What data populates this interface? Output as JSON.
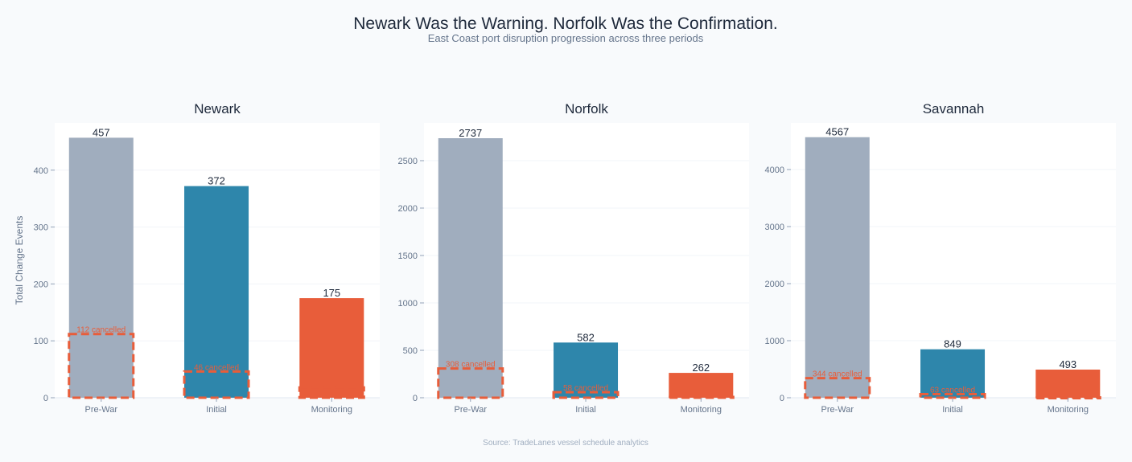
{
  "title": "Newark Was the Warning. Norfolk Was the Confirmation.",
  "subtitle": "East Coast port disruption progression across three periods",
  "source": "Source: TradeLanes vessel schedule analytics",
  "colors": {
    "prewar": "#a0adbe",
    "initial": "#2e86ab",
    "monitoring": "#e85d3a",
    "cancel": "#e85d3a",
    "text": "#1e293b",
    "axis": "#64748b"
  },
  "chart_data": [
    {
      "type": "bar",
      "title": "Newark",
      "ylabel": "Total Change Events",
      "categories": [
        "Pre-War",
        "Initial",
        "Monitoring"
      ],
      "values": [
        457,
        372,
        175
      ],
      "cancelled": [
        112,
        46,
        18
      ],
      "cancelled_labels": [
        "112 cancelled",
        "46 cancelled",
        ""
      ],
      "ylim": [
        0,
        483
      ],
      "yticks": [
        0,
        100,
        200,
        300,
        400
      ],
      "grid": true
    },
    {
      "type": "bar",
      "title": "Norfolk",
      "ylabel": "",
      "categories": [
        "Pre-War",
        "Initial",
        "Monitoring"
      ],
      "values": [
        2737,
        582,
        262
      ],
      "cancelled": [
        308,
        58,
        8
      ],
      "cancelled_labels": [
        "308 cancelled",
        "58 cancelled",
        ""
      ],
      "ylim": [
        0,
        2898
      ],
      "yticks": [
        0,
        500,
        1000,
        1500,
        2000,
        2500
      ],
      "grid": true
    },
    {
      "type": "bar",
      "title": "Savannah",
      "ylabel": "",
      "categories": [
        "Pre-War",
        "Initial",
        "Monitoring"
      ],
      "values": [
        4567,
        849,
        493
      ],
      "cancelled": [
        344,
        63,
        6
      ],
      "cancelled_labels": [
        "344 cancelled",
        "63 cancelled",
        ""
      ],
      "ylim": [
        0,
        4817
      ],
      "yticks": [
        0,
        1000,
        2000,
        3000,
        4000
      ],
      "grid": true
    }
  ]
}
